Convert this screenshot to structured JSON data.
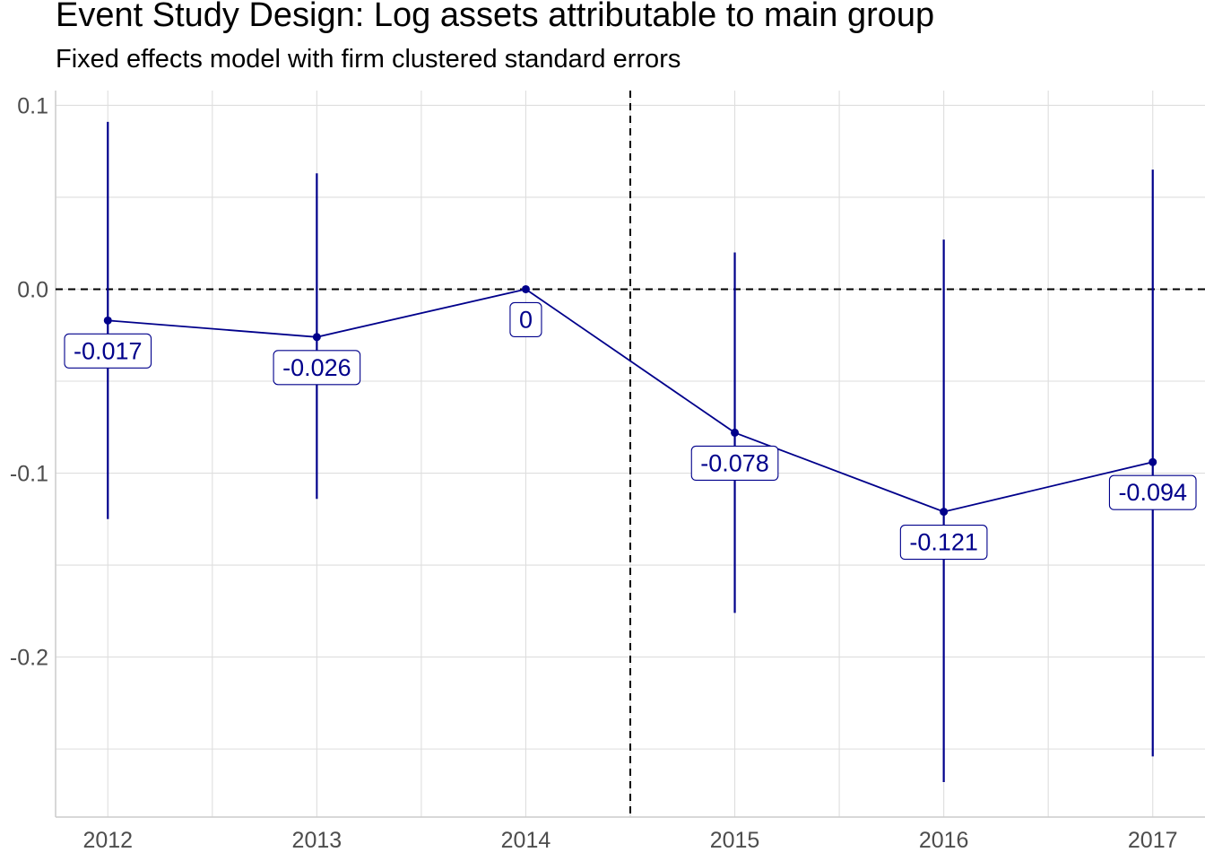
{
  "title": "Event Study Design: Log assets attributable to main group",
  "subtitle": "Fixed effects model with firm clustered standard errors",
  "colors": {
    "series": "#00008b",
    "grid": "#dedede",
    "reference_line": "#000000",
    "tick_text": "#4d4d4d"
  },
  "chart_data": {
    "type": "line",
    "x": [
      2012,
      2013,
      2014,
      2015,
      2016,
      2017
    ],
    "categories": [
      "2012",
      "2013",
      "2014",
      "2015",
      "2016",
      "2017"
    ],
    "values": [
      -0.017,
      -0.026,
      0,
      -0.078,
      -0.121,
      -0.094
    ],
    "labels": [
      "-0.017",
      "-0.026",
      "0",
      "-0.078",
      "-0.121",
      "-0.094"
    ],
    "ci_low": [
      -0.125,
      -0.114,
      0,
      -0.176,
      -0.268,
      -0.254
    ],
    "ci_high": [
      0.091,
      0.063,
      0,
      0.02,
      0.027,
      0.065
    ],
    "xlim": [
      2011.75,
      2017.25
    ],
    "ylim": [
      -0.287,
      0.108
    ],
    "yticks": [
      0.1,
      0.0,
      -0.1,
      -0.2
    ],
    "ytick_labels": [
      "0.1",
      "0.0",
      "-0.1",
      "-0.2"
    ],
    "ref_hline": 0,
    "ref_vline": 2014.5,
    "grid": true,
    "legend": "none",
    "xlabel": "",
    "ylabel": ""
  }
}
